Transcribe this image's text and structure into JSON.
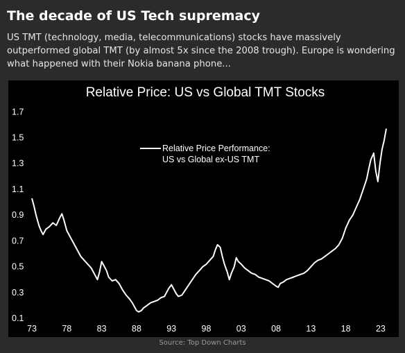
{
  "card": {
    "title": "The decade of US Tech supremacy",
    "subtitle": "US TMT (technology, media, telecommunications) stocks have massively outperformed global TMT (by almost 5x since the 2008 trough). Europe is wondering what happened with their Nokia banana phone...",
    "source": "Source: Top Down Charts"
  },
  "colors": {
    "background": "#2b2b2b",
    "chart_background": "#000000",
    "line": "#ffffff",
    "text": "#ffffff"
  },
  "chart_data": {
    "type": "line",
    "title": "Relative Price: US vs Global TMT Stocks",
    "legend_position": "upper-center",
    "grid": false,
    "xlabel": "",
    "ylabel": "",
    "xlim": [
      1973,
      2024.3
    ],
    "ylim": [
      0.1,
      1.75
    ],
    "x_ticks": [
      "73",
      "78",
      "83",
      "88",
      "93",
      "98",
      "03",
      "08",
      "13",
      "18",
      "23"
    ],
    "x_tick_values": [
      1973,
      1978,
      1983,
      1988,
      1993,
      1998,
      2003,
      2008,
      2013,
      2018,
      2023
    ],
    "y_ticks": [
      "0.1",
      "0.3",
      "0.5",
      "0.7",
      "0.9",
      "1.1",
      "1.3",
      "1.5",
      "1.7"
    ],
    "y_tick_values": [
      0.1,
      0.3,
      0.5,
      0.7,
      0.9,
      1.1,
      1.3,
      1.5,
      1.7
    ],
    "series": [
      {
        "name": "Relative Price Performance: US vs Global ex-US TMT",
        "x": [
          1973.0,
          1973.3,
          1973.6,
          1974.0,
          1974.3,
          1974.6,
          1975.0,
          1975.5,
          1976.0,
          1976.5,
          1977.0,
          1977.3,
          1977.6,
          1978.0,
          1978.5,
          1979.0,
          1979.5,
          1980.0,
          1980.5,
          1981.0,
          1981.5,
          1982.0,
          1982.4,
          1982.7,
          1983.0,
          1983.3,
          1983.7,
          1984.0,
          1984.5,
          1985.0,
          1985.5,
          1986.0,
          1986.5,
          1987.0,
          1987.4,
          1987.8,
          1988.0,
          1988.3,
          1988.7,
          1989.0,
          1989.5,
          1990.0,
          1990.5,
          1991.0,
          1991.5,
          1992.0,
          1992.3,
          1992.6,
          1993.0,
          1993.3,
          1993.7,
          1994.0,
          1994.5,
          1995.0,
          1995.5,
          1996.0,
          1996.5,
          1997.0,
          1997.5,
          1998.0,
          1998.5,
          1999.0,
          1999.3,
          1999.6,
          2000.0,
          2000.3,
          2000.6,
          2001.0,
          2001.3,
          2001.6,
          2002.0,
          2002.3,
          2002.6,
          2003.0,
          2003.5,
          2004.0,
          2004.5,
          2005.0,
          2005.5,
          2006.0,
          2006.5,
          2007.0,
          2007.5,
          2008.0,
          2008.3,
          2008.6,
          2009.0,
          2009.5,
          2010.0,
          2010.5,
          2011.0,
          2011.5,
          2012.0,
          2012.5,
          2013.0,
          2013.5,
          2014.0,
          2014.5,
          2015.0,
          2015.5,
          2016.0,
          2016.5,
          2017.0,
          2017.5,
          2018.0,
          2018.5,
          2019.0,
          2019.5,
          2020.0,
          2020.5,
          2021.0,
          2021.3,
          2021.6,
          2022.0,
          2022.3,
          2022.6,
          2022.9,
          2023.2,
          2023.5,
          2023.8
        ],
        "y": [
          1.03,
          0.97,
          0.9,
          0.82,
          0.78,
          0.75,
          0.79,
          0.81,
          0.84,
          0.82,
          0.88,
          0.91,
          0.86,
          0.78,
          0.73,
          0.68,
          0.63,
          0.58,
          0.55,
          0.52,
          0.49,
          0.44,
          0.4,
          0.46,
          0.54,
          0.51,
          0.47,
          0.42,
          0.39,
          0.4,
          0.37,
          0.32,
          0.28,
          0.25,
          0.22,
          0.18,
          0.16,
          0.15,
          0.16,
          0.18,
          0.2,
          0.22,
          0.23,
          0.24,
          0.26,
          0.27,
          0.3,
          0.33,
          0.36,
          0.33,
          0.29,
          0.27,
          0.28,
          0.32,
          0.36,
          0.4,
          0.44,
          0.47,
          0.5,
          0.52,
          0.55,
          0.58,
          0.63,
          0.67,
          0.65,
          0.58,
          0.52,
          0.46,
          0.4,
          0.45,
          0.5,
          0.57,
          0.54,
          0.52,
          0.49,
          0.47,
          0.45,
          0.44,
          0.42,
          0.41,
          0.4,
          0.39,
          0.37,
          0.35,
          0.34,
          0.37,
          0.38,
          0.4,
          0.41,
          0.42,
          0.43,
          0.44,
          0.45,
          0.47,
          0.5,
          0.53,
          0.55,
          0.56,
          0.58,
          0.6,
          0.62,
          0.64,
          0.67,
          0.72,
          0.8,
          0.86,
          0.9,
          0.96,
          1.02,
          1.1,
          1.18,
          1.26,
          1.33,
          1.38,
          1.24,
          1.16,
          1.3,
          1.41,
          1.48,
          1.57
        ]
      }
    ]
  }
}
